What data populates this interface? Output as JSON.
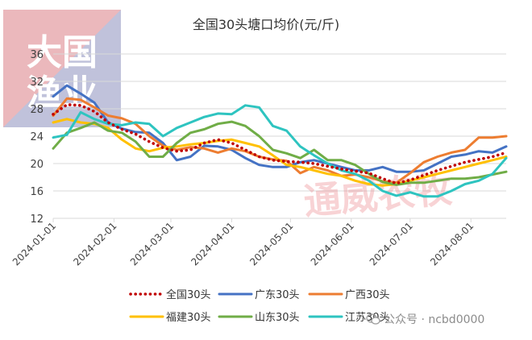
{
  "chart_data": {
    "type": "line",
    "title": "全国30头塘口均价(元/斤)",
    "xlabel": "",
    "ylabel": "",
    "ylim": [
      12,
      36
    ],
    "yticks": [
      12,
      16,
      20,
      24,
      28,
      32,
      36
    ],
    "grid": true,
    "legend_position": "bottom",
    "x_ticks": [
      "2024-01-01",
      "2024-02-01",
      "2024-03-01",
      "2024-04-01",
      "2024-05-01",
      "2024-06-01",
      "2024-07-01",
      "2024-08-01"
    ],
    "x": [
      "2024-01-01",
      "2024-01-08",
      "2024-01-15",
      "2024-01-22",
      "2024-01-29",
      "2024-02-05",
      "2024-02-12",
      "2024-02-19",
      "2024-02-26",
      "2024-03-04",
      "2024-03-11",
      "2024-03-18",
      "2024-03-25",
      "2024-04-01",
      "2024-04-08",
      "2024-04-15",
      "2024-04-22",
      "2024-04-29",
      "2024-05-06",
      "2024-05-13",
      "2024-05-20",
      "2024-05-27",
      "2024-06-03",
      "2024-06-10",
      "2024-06-17",
      "2024-06-24",
      "2024-07-01",
      "2024-07-08",
      "2024-07-15",
      "2024-07-22",
      "2024-07-29",
      "2024-08-05",
      "2024-08-12",
      "2024-08-19"
    ],
    "series": [
      {
        "name": "全国30头",
        "color": "#c00000",
        "dash": true,
        "values": [
          27.2,
          28.6,
          28.5,
          27.6,
          26.0,
          25.0,
          24.3,
          23.2,
          22.3,
          21.8,
          22.0,
          23.0,
          23.5,
          23.0,
          22.0,
          21.0,
          20.5,
          20.3,
          20.2,
          20.0,
          19.6,
          19.2,
          18.9,
          18.6,
          17.8,
          17.1,
          17.6,
          18.3,
          19.0,
          19.6,
          20.2,
          20.6,
          21.0,
          21.6
        ]
      },
      {
        "name": "广东30头",
        "color": "#4472c4",
        "values": [
          29.8,
          31.4,
          30.2,
          28.9,
          26.0,
          25.1,
          24.6,
          24.5,
          23.0,
          20.5,
          21.0,
          22.6,
          22.5,
          22.0,
          20.8,
          19.8,
          19.5,
          19.5,
          20.2,
          20.5,
          20.0,
          19.5,
          19.0,
          19.0,
          19.5,
          18.8,
          18.8,
          19.0,
          20.0,
          21.0,
          21.3,
          21.8,
          21.6,
          22.5
        ]
      },
      {
        "name": "广西30头",
        "color": "#ed7d31",
        "values": [
          27.0,
          29.5,
          29.3,
          28.2,
          27.0,
          26.6,
          25.8,
          24.0,
          22.6,
          22.0,
          22.4,
          22.2,
          21.6,
          22.2,
          21.8,
          21.0,
          20.6,
          20.4,
          18.6,
          19.5,
          19.0,
          18.2,
          18.4,
          18.0,
          17.4,
          17.2,
          18.6,
          20.2,
          21.0,
          21.6,
          22.0,
          23.8,
          23.8,
          24.0
        ]
      },
      {
        "name": "福建30头",
        "color": "#ffc000",
        "values": [
          26.0,
          26.5,
          26.0,
          25.8,
          25.2,
          23.5,
          22.2,
          21.8,
          22.3,
          22.5,
          22.8,
          23.0,
          23.3,
          23.5,
          23.0,
          22.5,
          21.2,
          19.8,
          19.5,
          19.0,
          18.5,
          18.2,
          17.5,
          17.0,
          16.8,
          17.0,
          17.5,
          18.0,
          18.5,
          19.0,
          19.5,
          20.0,
          20.5,
          21.0
        ]
      },
      {
        "name": "山东30头",
        "color": "#70ad47",
        "values": [
          22.2,
          24.5,
          25.2,
          26.0,
          24.8,
          24.5,
          23.2,
          21.0,
          21.0,
          23.0,
          24.5,
          25.0,
          25.8,
          26.1,
          25.5,
          24.0,
          22.0,
          21.5,
          20.8,
          22.0,
          20.5,
          20.5,
          19.8,
          18.5,
          17.3,
          16.9,
          17.2,
          17.2,
          17.5,
          17.8,
          17.8,
          18.0,
          18.4,
          18.8
        ]
      },
      {
        "name": "江苏30头",
        "color": "#2ec4c0",
        "values": [
          23.8,
          24.2,
          27.5,
          26.5,
          25.8,
          25.6,
          26.0,
          25.8,
          24.0,
          25.2,
          26.0,
          26.8,
          27.3,
          27.2,
          28.5,
          28.2,
          25.5,
          24.8,
          22.5,
          21.2,
          20.0,
          19.0,
          18.5,
          17.5,
          16.0,
          15.3,
          15.8,
          15.2,
          15.2,
          16.0,
          17.0,
          17.5,
          18.5,
          20.8
        ]
      }
    ]
  },
  "logo_text": "大国渔业",
  "watermark": "通威农牧",
  "footer": {
    "text": "公众号 · ncbd0000"
  },
  "colors": {
    "gridline": "#d9d9d9",
    "axis_text": "#404040",
    "watermark": "#e8656b"
  }
}
